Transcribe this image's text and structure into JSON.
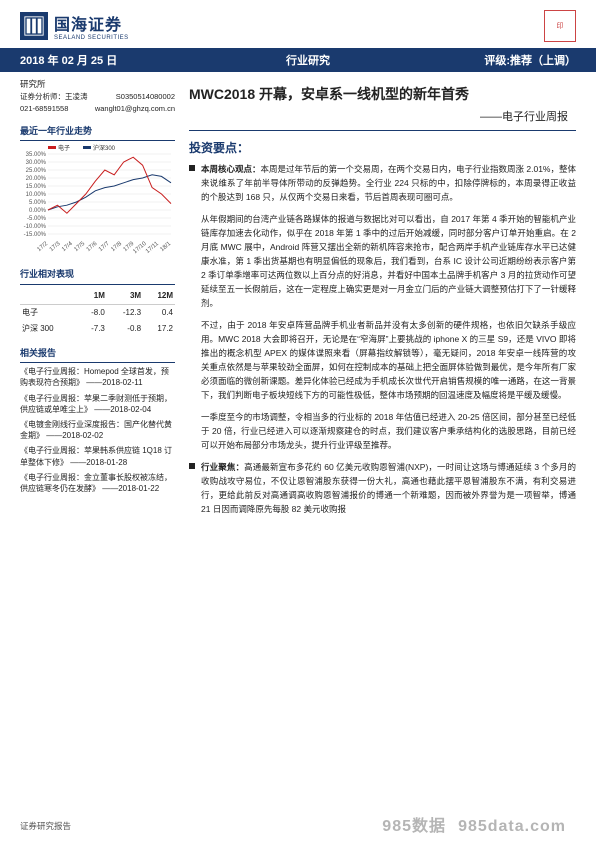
{
  "header": {
    "logo_cn": "国海证券",
    "logo_en": "SEALAND SECURITIES",
    "seal_text": "印"
  },
  "bluebar": {
    "date": "2018 年 02 月 25 日",
    "category": "行业研究",
    "rating": "评级:推荐（上调）"
  },
  "analyst": {
    "dept": "研究所",
    "label1": "证券分析师：",
    "name": "王凌涛",
    "cert": "S0350514080002",
    "phone": "021-68591558",
    "email": "wanglt01@ghzq.com.cn"
  },
  "title": "MWC2018 开幕，安卓系一线机型的新年首秀",
  "subtitle": "——电子行业周报",
  "chart": {
    "hdr": "最近一年行业走势",
    "legend": {
      "a": "电子",
      "b": "沪深300"
    },
    "legend_colors": {
      "a": "#c81e1e",
      "b": "#1a3a6e"
    },
    "title_fontsize": 9,
    "background_color": "#ffffff",
    "grid_color": "#dddddd",
    "axis_color": "#888888",
    "axis_fontsize": 6,
    "line_width": 1,
    "ylim": [
      -15,
      35
    ],
    "ytick_step": 5,
    "yticks": [
      "-15.00%",
      "-10.00%",
      "-5.00%",
      "0.00%",
      "5.00%",
      "10.00%",
      "15.00%",
      "20.00%",
      "25.00%",
      "30.00%",
      "35.00%"
    ],
    "x_labels": [
      "17/2",
      "17/3",
      "17/4",
      "17/5",
      "17/6",
      "17/7",
      "17/8",
      "17/9",
      "17/10",
      "17/11",
      "18/1"
    ],
    "series_a_color": "#c81e1e",
    "series_b_color": "#1a3a6e",
    "series_a": [
      0,
      3,
      -2,
      4,
      10,
      18,
      25,
      22,
      30,
      33,
      28,
      14,
      10,
      4
    ],
    "series_b": [
      0,
      2,
      3,
      5,
      8,
      12,
      14,
      15,
      17,
      19,
      20,
      22,
      21,
      17
    ]
  },
  "perf": {
    "hdr": "行业相对表现",
    "cols": [
      "",
      "1M",
      "3M",
      "12M"
    ],
    "rows": [
      [
        "电子",
        "-8.0",
        "-12.3",
        "0.4"
      ],
      [
        "沪深 300",
        "-7.3",
        "-0.8",
        "17.2"
      ]
    ]
  },
  "reports": {
    "hdr": "相关报告",
    "items": [
      {
        "t": "《电子行业周报：Homepod 全球首发，预购表现符合预期》",
        "d": "——2018-02-11"
      },
      {
        "t": "《电子行业周报：苹果二季财测低于预期，供应链或单唯尘上》",
        "d": "——2018-02-04"
      },
      {
        "t": "《电镀金刚线行业深度报告：国产化替代黄金期》",
        "d": "——2018-02-02"
      },
      {
        "t": "《电子行业周报：苹果韩系供应链 1Q18 订单整体下修》",
        "d": "——2018-01-28"
      },
      {
        "t": "《电子行业周报：金立董事长股权被冻结，供应链寒冬仍在发酵》",
        "d": "——2018-01-22"
      }
    ]
  },
  "sec_hdr": "投资要点：",
  "bullets": [
    {
      "lead": "本周核心观点：",
      "has_dot": true,
      "text": "本周是过年节后的第一个交易周，在两个交易日内，电子行业指数周涨 2.01%，整体来说维系了年前半导体所带动的反弹趋势。全行业 224 只标的中，扣除停牌标的，本周录得正收益的个股达到 168 只，从仅两个交易日来看，节后首周表现可圈可点。"
    },
    {
      "lead": "",
      "has_dot": false,
      "text": "从年假期间的台湾产业链各路媒体的报道与数据比对可以看出，自 2017 年第 4 季开始的智能机产业链库存加速去化动作，似乎在 2018 年第 1 季中的过后开始减缓，同时部分客户订单开始重启。在 2 月底 MWC 展中，Android 阵营又摆出全新的新机阵容来抢市，配合两岸手机产业链库存水平已达健康水准，第 1 季出货基期也有明显偏低的现象后，我们看到，台系 IC 设计公司近期纷纷表示客户第 2 季订单季增率可达两位数以上百分点的好消息，并看好中国本土品牌手机客户 3 月的拉货动作可望延续至五一长假前后，这在一定程度上确实更是对一月金立门后的产业链大调整预估打下了一针缓释剂。"
    },
    {
      "lead": "",
      "has_dot": false,
      "text": "不过，由于 2018 年安卓阵营品牌手机业者新品并没有太多创新的硬件规格，也依旧欠缺杀手级应用。MWC 2018 大会即将召开，无论是在“窄海屏”上要挑战的 iphone X 的三星 S9，还是 VIVO 即将推出的概念机型 APEX 的媒体谍照来看（屏幕指纹解锁等），毫无疑问，2018 年安卓一线阵营的攻关重点依然是与苹果较劲全面屏，如何在控制成本的基础上把全面屏体验做到最优，是今年所有厂家必须面临的微创新课题。差异化体验已经成为手机成长次世代开启销售规模的唯一通路，在这一背景下，我们判断电子板块短线下方的可能性极低，整体市场预期的回温速度及幅度将是平缓及缓慢。"
    },
    {
      "lead": "",
      "has_dot": false,
      "text": "一季度至今的市场调整，令相当多的行业标的 2018 年估值已经进入 20-25 倍区间，部分甚至已经低于 20 倍，行业已经进入可以逐渐规察建仓的时点，我们建议客户秉承结构化的选股思路，目前已经可以开始布局部分市场龙头，提升行业评级至推荐。"
    },
    {
      "lead": "行业聚焦：",
      "has_dot": true,
      "text": "高通最新宣布多花约 60 亿美元收购恩智浦(NXP)，一时间让这场与博通延续 3 个多月的收购战攻守易位，不仅让恩智浦股东获得一份大礼，高通也藉此摆平恩智浦股东不满，有利交易进行，更给此前反对高通调高收购恩智浦报价的博通一个新难题，因而被外界誉为是一项智举，博通 21 日因而调降原先每股 82 美元收购报"
    }
  ],
  "footer": {
    "left": "证券研究报告",
    "right": ""
  },
  "watermark": "985data.com",
  "watermark2": "985数据"
}
